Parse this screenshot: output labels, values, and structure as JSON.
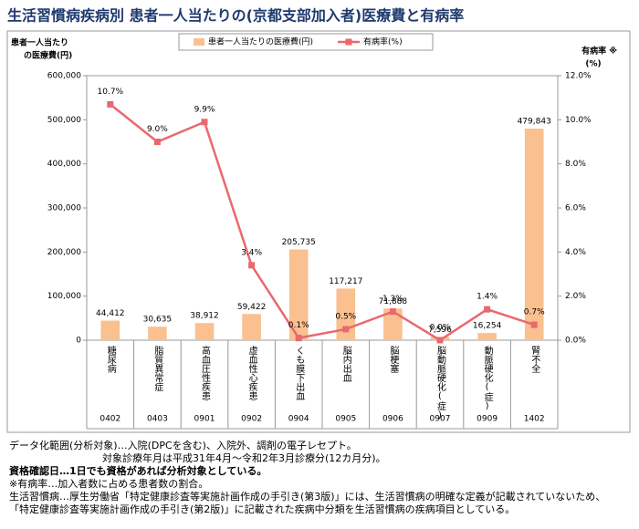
{
  "chart_data": {
    "type": "bar-line",
    "title": "生活習慣病疾病別 患者一人当たりの(京都支部加入者)医療費と有病率",
    "y_label": [
      "患者一人当たり",
      "の医療費(円)"
    ],
    "y2_label": [
      "有病率 ※",
      "(%)"
    ],
    "categories": [
      "糖尿病",
      "脂質異常症",
      "高血圧性疾患",
      "虚血性心疾患",
      "くも膜下出血",
      "脳内出血",
      "脳梗塞",
      "脳動脈硬化(症)",
      "動脈硬化(症)",
      "腎不全"
    ],
    "codes": [
      "0402",
      "0403",
      "0901",
      "0902",
      "0904",
      "0905",
      "0906",
      "0907",
      "0909",
      "1402"
    ],
    "series": [
      {
        "name": "患者一人当たりの医療費(円)",
        "color": "#fac090",
        "values": [
          44412,
          30635,
          38912,
          59422,
          205735,
          117217,
          71888,
          7596,
          16254,
          479843
        ],
        "value_labels": [
          "44,412",
          "30,635",
          "38,912",
          "59,422",
          "205,735",
          "117,217",
          "71,888",
          "7,596",
          "16,254",
          "479,843"
        ]
      },
      {
        "name": "有病率(%)",
        "color": "#e8696e",
        "axis": "y2",
        "values": [
          10.7,
          9.0,
          9.9,
          3.4,
          0.1,
          0.5,
          1.3,
          0,
          1.4,
          0.7
        ],
        "value_labels": [
          "10.7%",
          "9.0%",
          "9.9%",
          "3.4%",
          "0.1%",
          "0.5%",
          "1.3%",
          "0.0%",
          "1.4%",
          "0.7%"
        ]
      }
    ],
    "ylim": [
      0,
      600000
    ],
    "yticks": [
      0,
      {
        "value": 100000,
        "label": "100,000"
      },
      {
        "value": 200000,
        "label": "200,000"
      },
      {
        "value": 300000,
        "label": "300,000"
      },
      {
        "value": 400000,
        "label": "400,000"
      },
      {
        "value": 500000,
        "label": "500,000"
      },
      {
        "value": 600000,
        "label": "600,000"
      }
    ],
    "y2lim": [
      0,
      12
    ],
    "y2ticks": [
      {
        "value": 0,
        "label": "0.0%"
      },
      {
        "value": 2,
        "label": "2.0%"
      },
      {
        "value": 4,
        "label": "4.0%"
      },
      {
        "value": 6,
        "label": "6.0%"
      },
      {
        "value": 8,
        "label": "8.0%"
      },
      {
        "value": 10,
        "label": "10.0%"
      },
      {
        "value": 12,
        "label": "12.0%"
      }
    ]
  },
  "notes": [
    "データ化範囲(分析対象)…入院(DPCを含む)、入院外、調剤の電子レセプト。",
    "対象診療年月は平成31年4月～令和2年3月診療分(12カ月分)。",
    "資格確認日…1日でも資格があれば分析対象としている。",
    "※有病率…加入者数に占める患者数の割合。",
    "生活習慣病…厚生労働省「特定健康診査等実施計画作成の手引き(第3版)」には、生活習慣病の明確な定義が記載されていないため、",
    "「特定健康診査等実施計画作成の手引き(第2版)」に記載された疾病中分類を生活習慣病の疾病項目としている。"
  ]
}
